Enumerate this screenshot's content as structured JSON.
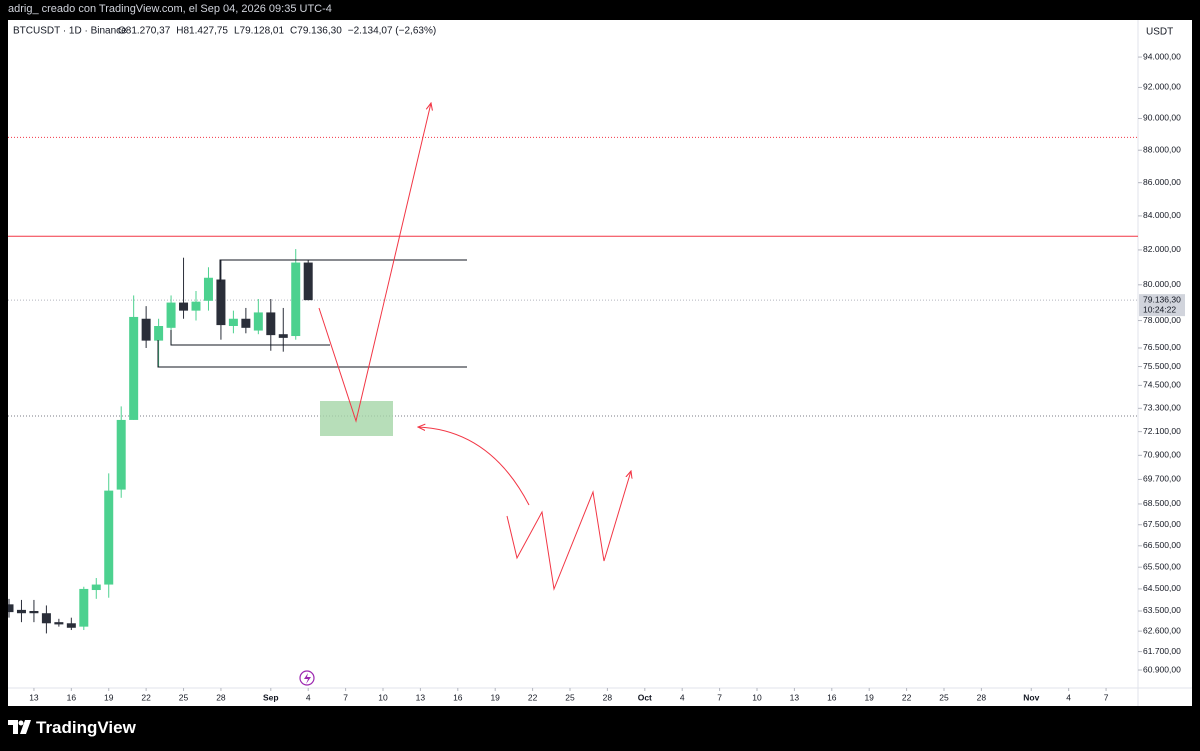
{
  "caption": "adrig_ creado con TradingView.com, el Sep 04, 2026 09:35 UTC-4",
  "brand": "TradingView",
  "chart_data": {
    "type": "candlestick",
    "symbol": "BTCUSDT · 1D · Binance",
    "ohlc_labels": [
      "O81.270,37",
      "H81.427,75",
      "L79.128,01",
      "C79.136,30"
    ],
    "change": "−2.134,07 (−2,63%)",
    "currency": "USDT",
    "last_price": {
      "value": 79136.3,
      "label": "79.136,30"
    },
    "countdown": "10:24:22",
    "x": [
      "2026-08-11",
      "2026-08-12",
      "2026-08-13",
      "2026-08-14",
      "2026-08-15",
      "2026-08-16",
      "2026-08-17",
      "2026-08-18",
      "2026-08-19",
      "2026-08-20",
      "2026-08-21",
      "2026-08-22",
      "2026-08-23",
      "2026-08-24",
      "2026-08-25",
      "2026-08-26",
      "2026-08-27",
      "2026-08-28",
      "2026-08-29",
      "2026-08-30",
      "2026-08-31",
      "2026-09-01",
      "2026-09-02",
      "2026-09-03",
      "2026-09-04"
    ],
    "open": [
      63800,
      63550,
      63500,
      63400,
      63000,
      62950,
      62800,
      64450,
      64700,
      69200,
      72700,
      78100,
      76900,
      77600,
      79000,
      78550,
      79100,
      80300,
      77700,
      78100,
      77450,
      78450,
      77250,
      77150,
      81270.37
    ],
    "high": [
      64050,
      64000,
      64000,
      63750,
      63150,
      63200,
      64600,
      65000,
      70000,
      73400,
      79400,
      78800,
      78100,
      79400,
      81550,
      79650,
      81000,
      81400,
      78550,
      78700,
      79200,
      79200,
      78700,
      82050,
      81427.75
    ],
    "low": [
      63200,
      63000,
      63000,
      62500,
      62800,
      62650,
      62650,
      64050,
      64100,
      68800,
      72700,
      76500,
      75450,
      76700,
      78100,
      78000,
      78550,
      76950,
      77300,
      77300,
      77250,
      76350,
      76300,
      76950,
      79128.01
    ],
    "close": [
      63450,
      63400,
      63400,
      62950,
      62900,
      62750,
      64500,
      64700,
      69150,
      72700,
      78200,
      76900,
      77700,
      79000,
      78550,
      79050,
      80400,
      77750,
      78100,
      77600,
      78450,
      77200,
      77050,
      81270,
      79136.3
    ],
    "up_color": "#4cd18f",
    "down_color": "#2a2e39",
    "xlim": [
      "2026-08-11",
      "2026-11-09"
    ],
    "xticks": [
      {
        "value": "2026-08-13",
        "label": "13"
      },
      {
        "value": "2026-08-16",
        "label": "16"
      },
      {
        "value": "2026-08-19",
        "label": "19"
      },
      {
        "value": "2026-08-22",
        "label": "22"
      },
      {
        "value": "2026-08-25",
        "label": "25"
      },
      {
        "value": "2026-08-28",
        "label": "28"
      },
      {
        "value": "2026-09-01",
        "label": "Sep"
      },
      {
        "value": "2026-09-04",
        "label": "4"
      },
      {
        "value": "2026-09-07",
        "label": "7"
      },
      {
        "value": "2026-09-10",
        "label": "10"
      },
      {
        "value": "2026-09-13",
        "label": "13"
      },
      {
        "value": "2026-09-16",
        "label": "16"
      },
      {
        "value": "2026-09-19",
        "label": "19"
      },
      {
        "value": "2026-09-22",
        "label": "22"
      },
      {
        "value": "2026-09-25",
        "label": "25"
      },
      {
        "value": "2026-09-28",
        "label": "28"
      },
      {
        "value": "2026-10-01",
        "label": "Oct"
      },
      {
        "value": "2026-10-04",
        "label": "4"
      },
      {
        "value": "2026-10-07",
        "label": "7"
      },
      {
        "value": "2026-10-10",
        "label": "10"
      },
      {
        "value": "2026-10-13",
        "label": "13"
      },
      {
        "value": "2026-10-16",
        "label": "16"
      },
      {
        "value": "2026-10-19",
        "label": "19"
      },
      {
        "value": "2026-10-22",
        "label": "22"
      },
      {
        "value": "2026-10-25",
        "label": "25"
      },
      {
        "value": "2026-10-28",
        "label": "28"
      },
      {
        "value": "2026-11-01",
        "label": "Nov"
      },
      {
        "value": "2026-11-04",
        "label": "4"
      },
      {
        "value": "2026-11-07",
        "label": "7"
      }
    ],
    "ylim": [
      60130,
      96500
    ],
    "log_scale": true,
    "yticks": [
      {
        "value": 94000,
        "label": "94.000,00"
      },
      {
        "value": 92000,
        "label": "92.000,00"
      },
      {
        "value": 90000,
        "label": "90.000,00"
      },
      {
        "value": 88000,
        "label": "88.000,00"
      },
      {
        "value": 86000,
        "label": "86.000,00"
      },
      {
        "value": 84000,
        "label": "84.000,00"
      },
      {
        "value": 82000,
        "label": "82.000,00"
      },
      {
        "value": 80000,
        "label": "80.000,00"
      },
      {
        "value": 78000,
        "label": "78.000,00"
      },
      {
        "value": 76500,
        "label": "76.500,00"
      },
      {
        "value": 75500,
        "label": "75.500,00"
      },
      {
        "value": 74500,
        "label": "74.500,00"
      },
      {
        "value": 73300,
        "label": "73.300,00"
      },
      {
        "value": 72100,
        "label": "72.100,00"
      },
      {
        "value": 70900,
        "label": "70.900,00"
      },
      {
        "value": 69700,
        "label": "69.700,00"
      },
      {
        "value": 68500,
        "label": "68.500,00"
      },
      {
        "value": 67500,
        "label": "67.500,00"
      },
      {
        "value": 66500,
        "label": "66.500,00"
      },
      {
        "value": 65500,
        "label": "65.500,00"
      },
      {
        "value": 64500,
        "label": "64.500,00"
      },
      {
        "value": 63500,
        "label": "63.500,00"
      },
      {
        "value": 62600,
        "label": "62.600,00"
      },
      {
        "value": 61700,
        "label": "61.700,00"
      },
      {
        "value": 60900,
        "label": "60.900,00"
      }
    ],
    "levels": [
      {
        "value": 82800,
        "color": "#f23645",
        "style": "solid"
      },
      {
        "value": 88800,
        "color": "#f23645",
        "style": "dotted"
      },
      {
        "value": 72900,
        "color": "#787b86",
        "style": "dotted"
      }
    ]
  }
}
